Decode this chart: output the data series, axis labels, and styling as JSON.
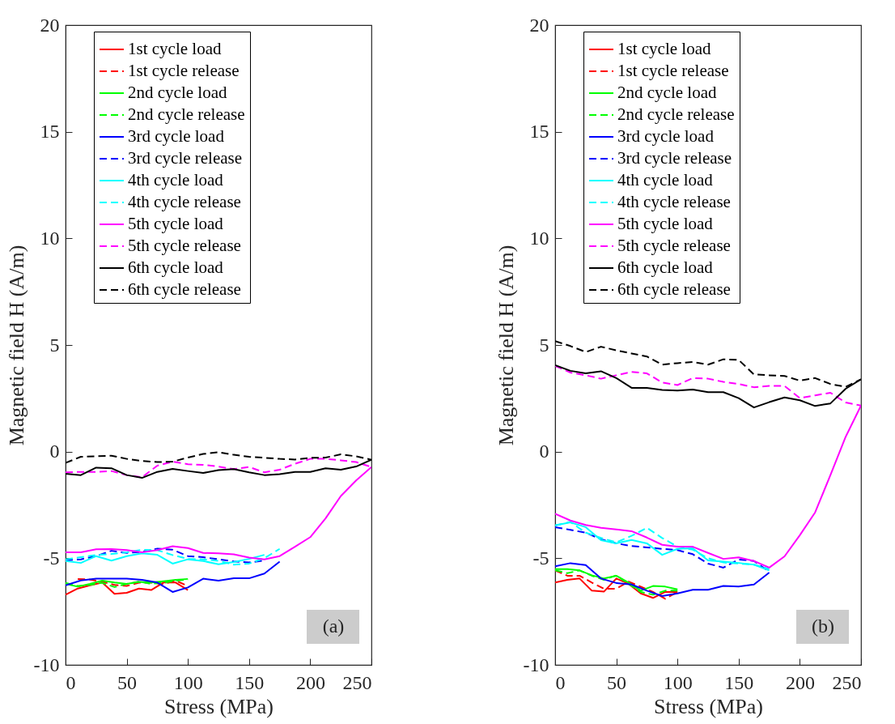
{
  "chart_data": [
    {
      "type": "line",
      "xlabel": "Stress (MPa)",
      "ylabel": "Magnetic field H (A/m)",
      "xlim": [
        0,
        250
      ],
      "ylim": [
        -10,
        20
      ],
      "xticks": [
        0,
        50,
        100,
        150,
        200,
        250
      ],
      "yticks": [
        -10,
        -5,
        0,
        5,
        10,
        15,
        20
      ],
      "grid": false,
      "legend": "top",
      "annotations": [
        "(a)"
      ],
      "series": [
        {
          "name": "1st cycle load",
          "color": "#ff0000",
          "line_style": "solid",
          "x": [
            0,
            10,
            20,
            30,
            40,
            50,
            60,
            70,
            80,
            90,
            100
          ],
          "values": [
            -6.71,
            -6.42,
            -6.27,
            -6.14,
            -6.67,
            -6.62,
            -6.42,
            -6.49,
            -6.14,
            -6.14,
            -6.49
          ]
        },
        {
          "name": "1st cycle release",
          "color": "#ff0000",
          "line_style": "dashed",
          "x": [
            10,
            20,
            30,
            40,
            50,
            60,
            70,
            80,
            90,
            100
          ],
          "values": [
            -5.97,
            -6.0,
            -6.1,
            -6.25,
            -6.3,
            -6.15,
            -6.15,
            -6.2,
            -6.05,
            -6.3
          ]
        },
        {
          "name": "2nd cycle load",
          "color": "#00ff00",
          "line_style": "solid",
          "x": [
            0,
            10,
            20,
            30,
            40,
            50,
            60,
            70,
            80,
            90,
            100
          ],
          "values": [
            -6.2,
            -6.33,
            -6.2,
            -6.05,
            -6.14,
            -6.2,
            -6.11,
            -6.14,
            -6.08,
            -6.01,
            -5.97
          ]
        },
        {
          "name": "2nd cycle release",
          "color": "#00ff00",
          "line_style": "dashed",
          "x": [
            0,
            10,
            20,
            30,
            40,
            50,
            60,
            70,
            80,
            90,
            100
          ],
          "values": [
            -6.15,
            -6.3,
            -6.25,
            -6.15,
            -6.35,
            -6.2,
            -6.1,
            -6.2,
            -6.15,
            -6.05,
            -6.0
          ]
        },
        {
          "name": "3rd cycle load",
          "color": "#0000ff",
          "line_style": "solid",
          "x": [
            0,
            12.5,
            25,
            37.5,
            50,
            62.5,
            75,
            87.5,
            100,
            112.5,
            125,
            137.5,
            150,
            162.5,
            175
          ],
          "values": [
            -6.27,
            -6.04,
            -5.96,
            -5.96,
            -5.96,
            -6.01,
            -6.14,
            -6.58,
            -6.37,
            -5.96,
            -6.05,
            -5.94,
            -5.94,
            -5.72,
            -5.16
          ]
        },
        {
          "name": "3rd cycle release",
          "color": "#0000ff",
          "line_style": "dashed",
          "x": [
            0,
            12.5,
            25,
            37.5,
            50,
            62.5,
            75,
            87.5,
            100,
            112.5,
            125,
            137.5,
            150,
            162.5
          ],
          "values": [
            -5.1,
            -5.05,
            -4.9,
            -4.65,
            -4.75,
            -4.7,
            -4.55,
            -4.6,
            -4.9,
            -4.95,
            -5.05,
            -5.15,
            -5.2,
            -5.1
          ]
        },
        {
          "name": "4th cycle load",
          "color": "#00ffff",
          "line_style": "solid",
          "x": [
            0,
            12.5,
            25,
            37.5,
            50,
            62.5,
            75,
            87.5,
            100,
            112.5,
            125,
            137.5,
            150,
            162.5
          ],
          "values": [
            -5.13,
            -5.22,
            -4.9,
            -5.11,
            -4.9,
            -4.77,
            -4.84,
            -5.25,
            -5.05,
            -5.13,
            -5.28,
            -5.18,
            -5.03,
            -4.84
          ]
        },
        {
          "name": "4th cycle release",
          "color": "#00ffff",
          "line_style": "dashed",
          "x": [
            0,
            12.5,
            25,
            37.5,
            50,
            62.5,
            75,
            87.5,
            100,
            112.5,
            125,
            137.5,
            150,
            162.5,
            175
          ],
          "values": [
            -5.05,
            -4.95,
            -4.85,
            -4.8,
            -4.72,
            -4.6,
            -4.62,
            -4.85,
            -5.03,
            -5.05,
            -5.12,
            -5.3,
            -5.25,
            -5.0,
            -4.56
          ]
        },
        {
          "name": "5th cycle load",
          "color": "#ff00ff",
          "line_style": "solid",
          "x": [
            0,
            12.5,
            25,
            37.5,
            50,
            62.5,
            75,
            87.5,
            100,
            112.5,
            125,
            137.5,
            150,
            162.5,
            175,
            187.5,
            200,
            212.5,
            225,
            237.5,
            250
          ],
          "values": [
            -4.72,
            -4.72,
            -4.58,
            -4.57,
            -4.62,
            -4.72,
            -4.62,
            -4.44,
            -4.52,
            -4.75,
            -4.77,
            -4.82,
            -4.97,
            -5.05,
            -4.9,
            -4.46,
            -4.01,
            -3.13,
            -2.08,
            -1.35,
            -0.72
          ]
        },
        {
          "name": "5th cycle release",
          "color": "#ff00ff",
          "line_style": "dashed",
          "x": [
            0,
            12.5,
            25,
            37.5,
            50,
            62.5,
            75,
            87.5,
            100,
            112.5,
            125,
            137.5,
            150,
            162.5,
            175,
            187.5,
            200,
            212.5,
            225,
            237.5,
            250
          ],
          "values": [
            -0.97,
            -0.95,
            -0.95,
            -0.91,
            -1.1,
            -1.2,
            -0.66,
            -0.47,
            -0.59,
            -0.62,
            -0.7,
            -0.82,
            -0.72,
            -0.97,
            -0.85,
            -0.57,
            -0.34,
            -0.34,
            -0.41,
            -0.49,
            -0.72
          ]
        },
        {
          "name": "6th cycle load",
          "color": "#000000",
          "line_style": "solid",
          "x": [
            0,
            12.5,
            25,
            37.5,
            50,
            62.5,
            75,
            87.5,
            100,
            112.5,
            125,
            137.5,
            150,
            162.5,
            175,
            187.5,
            200,
            212.5,
            225,
            237.5,
            250
          ],
          "values": [
            -1.04,
            -1.1,
            -0.75,
            -0.78,
            -1.1,
            -1.23,
            -0.95,
            -0.81,
            -0.91,
            -1.0,
            -0.87,
            -0.82,
            -0.97,
            -1.1,
            -1.06,
            -0.95,
            -0.95,
            -0.78,
            -0.85,
            -0.7,
            -0.38
          ]
        },
        {
          "name": "6th cycle release",
          "color": "#000000",
          "line_style": "dashed",
          "x": [
            0,
            12.5,
            25,
            37.5,
            50,
            62.5,
            75,
            87.5,
            100,
            112.5,
            125,
            137.5,
            150,
            162.5,
            175,
            187.5,
            200,
            212.5,
            225,
            237.5,
            250
          ],
          "values": [
            -0.53,
            -0.24,
            -0.22,
            -0.19,
            -0.34,
            -0.44,
            -0.49,
            -0.47,
            -0.28,
            -0.11,
            -0.03,
            -0.15,
            -0.24,
            -0.29,
            -0.34,
            -0.37,
            -0.29,
            -0.28,
            -0.13,
            -0.22,
            -0.38
          ]
        }
      ]
    },
    {
      "type": "line",
      "xlabel": "Stress (MPa)",
      "ylabel": "Magnetic field H (A/m)",
      "xlim": [
        0,
        250
      ],
      "ylim": [
        -10,
        20
      ],
      "xticks": [
        0,
        50,
        100,
        150,
        200,
        250
      ],
      "yticks": [
        -10,
        -5,
        0,
        5,
        10,
        15,
        20
      ],
      "grid": false,
      "legend": "top",
      "annotations": [
        "(b)"
      ],
      "series": [
        {
          "name": "1st cycle load",
          "color": "#ff0000",
          "line_style": "solid",
          "x": [
            0,
            10,
            20,
            30,
            40,
            50,
            60,
            70,
            80,
            90,
            100
          ],
          "values": [
            -6.14,
            -6.01,
            -5.95,
            -6.52,
            -6.56,
            -5.95,
            -6.2,
            -6.65,
            -6.86,
            -6.58,
            -6.58
          ]
        },
        {
          "name": "1st cycle release",
          "color": "#ff0000",
          "line_style": "dashed",
          "x": [
            0,
            10,
            20,
            30,
            40,
            50,
            60,
            70,
            80,
            90,
            100
          ],
          "values": [
            -5.57,
            -5.82,
            -5.82,
            -6.14,
            -6.43,
            -6.43,
            -6.1,
            -6.33,
            -6.58,
            -6.9,
            -6.58
          ]
        },
        {
          "name": "2nd cycle load",
          "color": "#00ff00",
          "line_style": "solid",
          "x": [
            0,
            10,
            20,
            30,
            40,
            50,
            60,
            70,
            80,
            90,
            100
          ],
          "values": [
            -5.51,
            -5.51,
            -5.57,
            -5.8,
            -5.95,
            -5.82,
            -6.14,
            -6.52,
            -6.3,
            -6.33,
            -6.46
          ]
        },
        {
          "name": "2nd cycle release",
          "color": "#00ff00",
          "line_style": "dashed",
          "x": [
            0,
            10,
            20,
            30,
            40,
            50,
            60,
            70,
            80,
            90,
            100
          ],
          "values": [
            -5.57,
            -5.7,
            -5.57,
            -5.82,
            -6.01,
            -5.8,
            -6.2,
            -6.58,
            -6.71,
            -6.52,
            -6.52
          ]
        },
        {
          "name": "3rd cycle load",
          "color": "#0000ff",
          "line_style": "solid",
          "x": [
            0,
            12.5,
            25,
            37.5,
            50,
            62.5,
            75,
            87.5,
            100,
            112.5,
            125,
            137.5,
            150,
            162.5,
            175
          ],
          "values": [
            -5.38,
            -5.23,
            -5.32,
            -5.95,
            -6.16,
            -6.23,
            -6.52,
            -6.77,
            -6.65,
            -6.48,
            -6.48,
            -6.3,
            -6.33,
            -6.23,
            -5.67
          ]
        },
        {
          "name": "3rd cycle release",
          "color": "#0000ff",
          "line_style": "dashed",
          "x": [
            0,
            12.5,
            25,
            37.5,
            50,
            62.5,
            75,
            87.5,
            100,
            112.5,
            125,
            137.5,
            150,
            162.5,
            175
          ],
          "values": [
            -3.54,
            -3.67,
            -3.8,
            -4.11,
            -4.3,
            -4.43,
            -4.49,
            -4.56,
            -4.62,
            -4.81,
            -5.25,
            -5.44,
            -5.06,
            -5.13,
            -5.63
          ]
        },
        {
          "name": "4th cycle load",
          "color": "#00ffff",
          "line_style": "solid",
          "x": [
            0,
            12.5,
            25,
            37.5,
            50,
            62.5,
            75,
            87.5,
            100,
            112.5,
            125,
            137.5,
            150,
            162.5,
            175
          ],
          "values": [
            -3.46,
            -3.32,
            -3.54,
            -4.15,
            -4.3,
            -4.14,
            -4.3,
            -4.84,
            -4.56,
            -4.53,
            -5.1,
            -5.16,
            -5.22,
            -5.3,
            -5.57
          ]
        },
        {
          "name": "4th cycle release",
          "color": "#00ffff",
          "line_style": "dashed",
          "x": [
            0,
            12.5,
            25,
            37.5,
            50,
            62.5,
            75,
            87.5,
            100,
            112.5,
            125,
            137.5,
            150,
            162.5,
            175
          ],
          "values": [
            -3.46,
            -3.3,
            -3.8,
            -4.05,
            -4.25,
            -3.95,
            -3.57,
            -4.05,
            -4.45,
            -4.6,
            -5.0,
            -5.2,
            -5.25,
            -5.3,
            -5.5
          ]
        },
        {
          "name": "5th cycle load",
          "color": "#ff00ff",
          "line_style": "solid",
          "x": [
            0,
            12.5,
            25,
            37.5,
            50,
            62.5,
            75,
            87.5,
            100,
            112.5,
            125,
            137.5,
            150,
            162.5,
            175,
            187.5,
            200,
            212.5,
            225,
            237.5,
            250
          ],
          "values": [
            -2.91,
            -3.23,
            -3.44,
            -3.57,
            -3.65,
            -3.73,
            -4.03,
            -4.37,
            -4.46,
            -4.46,
            -4.75,
            -5.03,
            -4.96,
            -5.13,
            -5.44,
            -4.91,
            -3.92,
            -2.85,
            -1.1,
            0.7,
            2.16
          ]
        },
        {
          "name": "5th cycle release",
          "color": "#ff00ff",
          "line_style": "dashed",
          "x": [
            0,
            12.5,
            25,
            37.5,
            50,
            62.5,
            75,
            87.5,
            100,
            112.5,
            125,
            137.5,
            150,
            162.5,
            175,
            187.5,
            200,
            212.5,
            225,
            237.5,
            250
          ],
          "values": [
            4.02,
            3.71,
            3.58,
            3.42,
            3.58,
            3.74,
            3.67,
            3.24,
            3.12,
            3.45,
            3.42,
            3.27,
            3.17,
            3.02,
            3.08,
            3.08,
            2.51,
            2.64,
            2.76,
            2.3,
            2.16
          ]
        },
        {
          "name": "6th cycle load",
          "color": "#000000",
          "line_style": "solid",
          "x": [
            0,
            12.5,
            25,
            37.5,
            50,
            62.5,
            75,
            87.5,
            100,
            112.5,
            125,
            137.5,
            150,
            162.5,
            175,
            187.5,
            200,
            212.5,
            225,
            237.5,
            250
          ],
          "values": [
            4.05,
            3.79,
            3.67,
            3.77,
            3.45,
            2.99,
            2.99,
            2.89,
            2.86,
            2.91,
            2.79,
            2.79,
            2.51,
            2.07,
            2.32,
            2.54,
            2.41,
            2.14,
            2.26,
            2.95,
            3.39
          ]
        },
        {
          "name": "6th cycle release",
          "color": "#000000",
          "line_style": "dashed",
          "x": [
            0,
            12.5,
            25,
            37.5,
            50,
            62.5,
            75,
            87.5,
            100,
            112.5,
            125,
            137.5,
            150,
            162.5,
            175,
            187.5,
            200,
            212.5,
            225,
            237.5,
            250
          ],
          "values": [
            5.18,
            4.95,
            4.67,
            4.92,
            4.75,
            4.6,
            4.46,
            4.08,
            4.15,
            4.2,
            4.08,
            4.33,
            4.3,
            3.62,
            3.58,
            3.55,
            3.33,
            3.45,
            3.17,
            3.04,
            3.39
          ]
        }
      ]
    }
  ]
}
